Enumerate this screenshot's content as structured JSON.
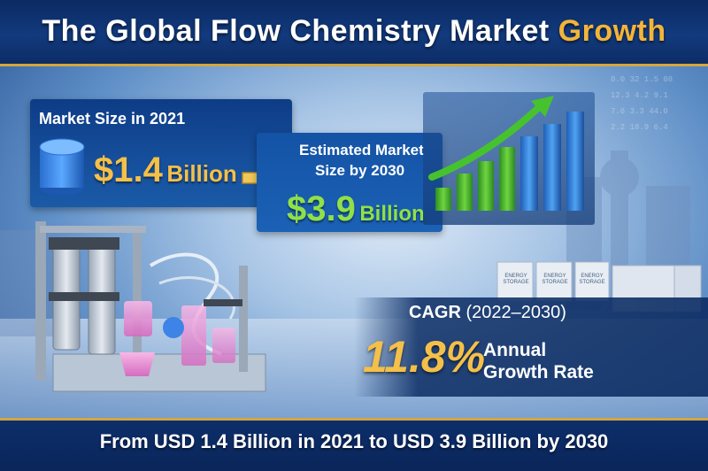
{
  "header": {
    "title_main": "The Global Flow Chemistry Market ",
    "title_highlight": "Growth"
  },
  "market_2021": {
    "label": "Market Size in 2021",
    "value": "$1.4",
    "unit": "Billion",
    "icon": "database-cylinder-icon"
  },
  "market_2030": {
    "label_line1": "Estimated Market",
    "label_line2": "Size by 2030",
    "value": "$3.9",
    "unit": "Billion"
  },
  "cagr": {
    "label": "CAGR",
    "years": "(2022–2030)",
    "value": "11.8%",
    "desc_line1": "Annual",
    "desc_line2": "Growth Rate"
  },
  "footer": {
    "text": "From USD 1.4 Billion in 2021 to USD 3.9 Billion by 2030"
  },
  "storage_units": [
    {
      "label_top": "ENERGY",
      "label_bottom": "STORAGE"
    },
    {
      "label_top": "ENERGY",
      "label_bottom": "STORAGE"
    },
    {
      "label_top": "ENERGY",
      "label_bottom": "STORAGE"
    }
  ],
  "colors": {
    "navy": "#0b2a63",
    "gold": "#f4c04a",
    "green": "#8fe04a",
    "accent_line": "#d4a640"
  }
}
